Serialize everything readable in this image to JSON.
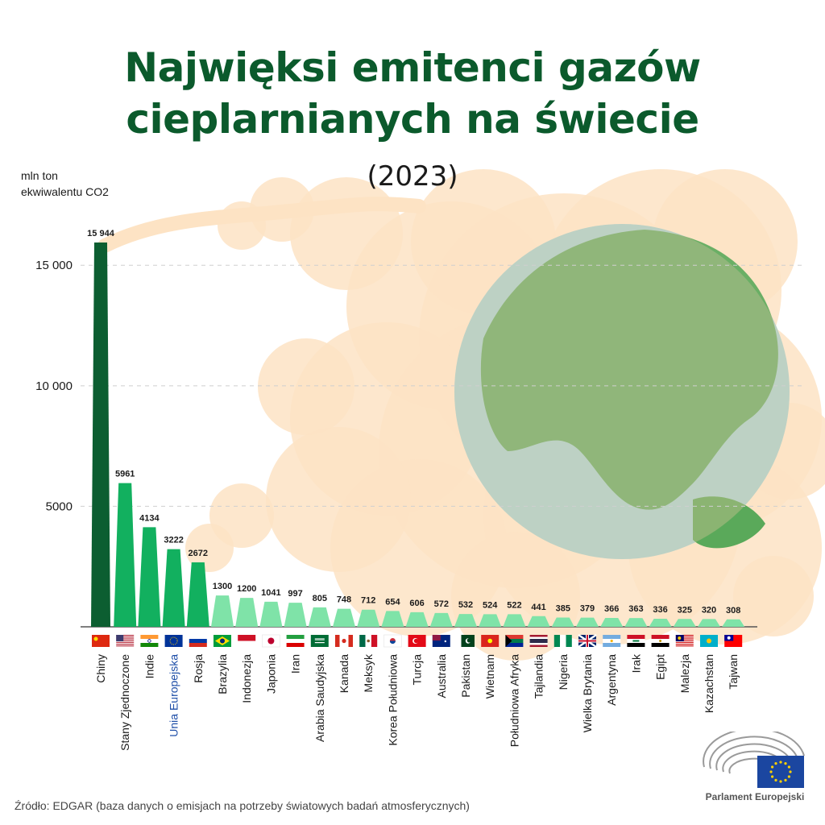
{
  "header": {
    "title_line1": "Najwięksi emitenci gazów",
    "title_line2": "cieplarnianych na świecie",
    "subtitle": "(2023)",
    "y_label_line1": "mln ton",
    "y_label_line2": "ekwiwalentu CO2"
  },
  "footer": {
    "source": "Źródło: EDGAR (baza danych o emisjach na potrzeby światowych badań atmosferycznych)",
    "logo_text": "Parlament Europejski"
  },
  "colors": {
    "title": "#0b5a2c",
    "dark_bar": "#0c5e31",
    "mid_bar": "#12b05f",
    "light_bar": "#7fe3a8",
    "smoke": "#fde3c4",
    "eu_label": "#1f4fa8",
    "globe_land": "#5aa95a",
    "globe_sea": "#a7d6d8",
    "eu_flag": "#1b46a0"
  },
  "chart_data": {
    "type": "bar",
    "title": "Najwięksi emitenci gazów cieplarnianych na świecie (2023)",
    "ylabel": "mln ton ekwiwalentu CO2",
    "ylim": [
      0,
      16000
    ],
    "yticks": [
      5000,
      10000,
      15000
    ],
    "ytick_labels": [
      "5000",
      "10 000",
      "15 000"
    ],
    "grid": "horizontal dashed",
    "categories": [
      "Chiny",
      "Stany Zjednoczone",
      "Indie",
      "Unia Europejska",
      "Rosja",
      "Brazylia",
      "Indonezja",
      "Japonia",
      "Iran",
      "Arabia Saudyjska",
      "Kanada",
      "Meksyk",
      "Korea Południowa",
      "Turcja",
      "Australia",
      "Pakistan",
      "Wietnam",
      "Południowa Afryka",
      "Tajlandia",
      "Nigeria",
      "Wielka Brytania",
      "Argentyna",
      "Irak",
      "Egipt",
      "Malezja",
      "Kazachstan",
      "Tajwan"
    ],
    "values": [
      15944,
      5961,
      4134,
      3222,
      2672,
      1300,
      1200,
      1041,
      997,
      805,
      748,
      712,
      654,
      606,
      572,
      532,
      524,
      522,
      441,
      385,
      379,
      366,
      363,
      336,
      325,
      320,
      308
    ],
    "value_labels": [
      "15 944",
      "5961",
      "4134",
      "3222",
      "2672",
      "1300",
      "1200",
      "1041",
      "997",
      "805",
      "748",
      "712",
      "654",
      "606",
      "572",
      "532",
      "524",
      "522",
      "441",
      "385",
      "379",
      "366",
      "363",
      "336",
      "325",
      "320",
      "308"
    ],
    "flags": [
      "china",
      "usa",
      "india",
      "eu",
      "russia",
      "brazil",
      "indonesia",
      "japan",
      "iran",
      "saudi-arabia",
      "canada",
      "mexico",
      "south-korea",
      "turkey",
      "australia",
      "pakistan",
      "vietnam",
      "south-africa",
      "thailand",
      "nigeria",
      "united-kingdom",
      "argentina",
      "iraq",
      "egypt",
      "malaysia",
      "kazakhstan",
      "taiwan"
    ]
  }
}
